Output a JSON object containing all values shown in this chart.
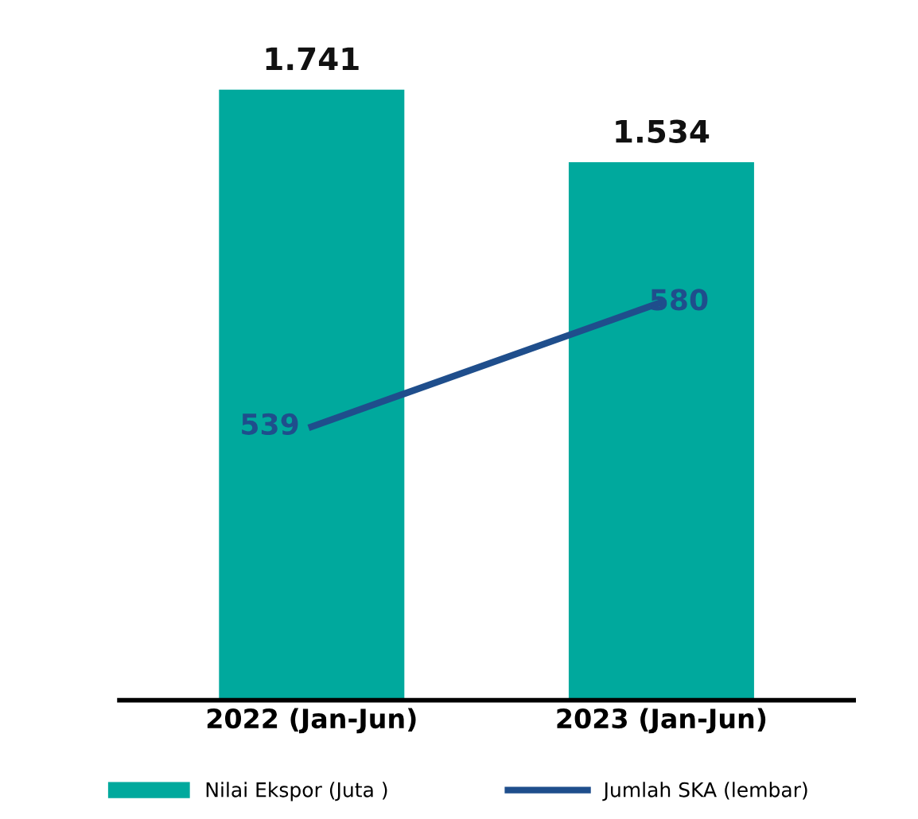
{
  "chart_data": {
    "type": "bar",
    "categories": [
      "2022 (Jan-Jun)",
      "2023 (Jan-Jun)"
    ],
    "series": [
      {
        "name": "Nilai Ekspor (Juta )",
        "color": "#00a99d",
        "values": [
          1741,
          1534
        ],
        "value_labels": [
          "1.741",
          "1.534"
        ]
      },
      {
        "name": "Jumlah SKA (lembar)",
        "type": "line",
        "axis": "y2",
        "color": "#1f4e8c",
        "values": [
          539,
          580
        ],
        "value_labels": [
          "539",
          "580"
        ]
      }
    ],
    "tick_labels": "x",
    "legend": "bottom",
    "marker": "none",
    "line_style": "solid"
  }
}
